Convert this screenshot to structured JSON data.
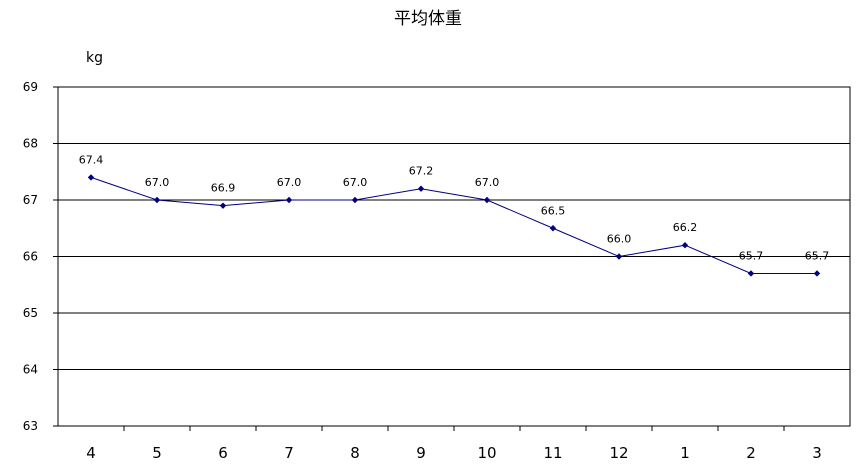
{
  "chart_data": {
    "type": "line",
    "title": "平均体重",
    "ylabel": "kg",
    "categories": [
      "4",
      "5",
      "6",
      "7",
      "8",
      "9",
      "10",
      "11",
      "12",
      "1",
      "2",
      "3"
    ],
    "series": [
      {
        "values": [
          67.4,
          67.0,
          66.9,
          67.0,
          67.0,
          67.2,
          67.0,
          66.5,
          66.0,
          66.2,
          65.7,
          65.7
        ],
        "labels": [
          "67.4",
          "67.0",
          "66.9",
          "67.0",
          "67.0",
          "67.2",
          "67.0",
          "66.5",
          "66.0",
          "66.2",
          "65.7",
          "65.7"
        ]
      }
    ],
    "yticks": [
      "63",
      "64",
      "65",
      "66",
      "67",
      "68",
      "69"
    ],
    "ylim": [
      63,
      69
    ],
    "grid": "horizontal",
    "colors": {
      "line": "#000080",
      "marker": "#000080",
      "grid": "#000000"
    }
  }
}
